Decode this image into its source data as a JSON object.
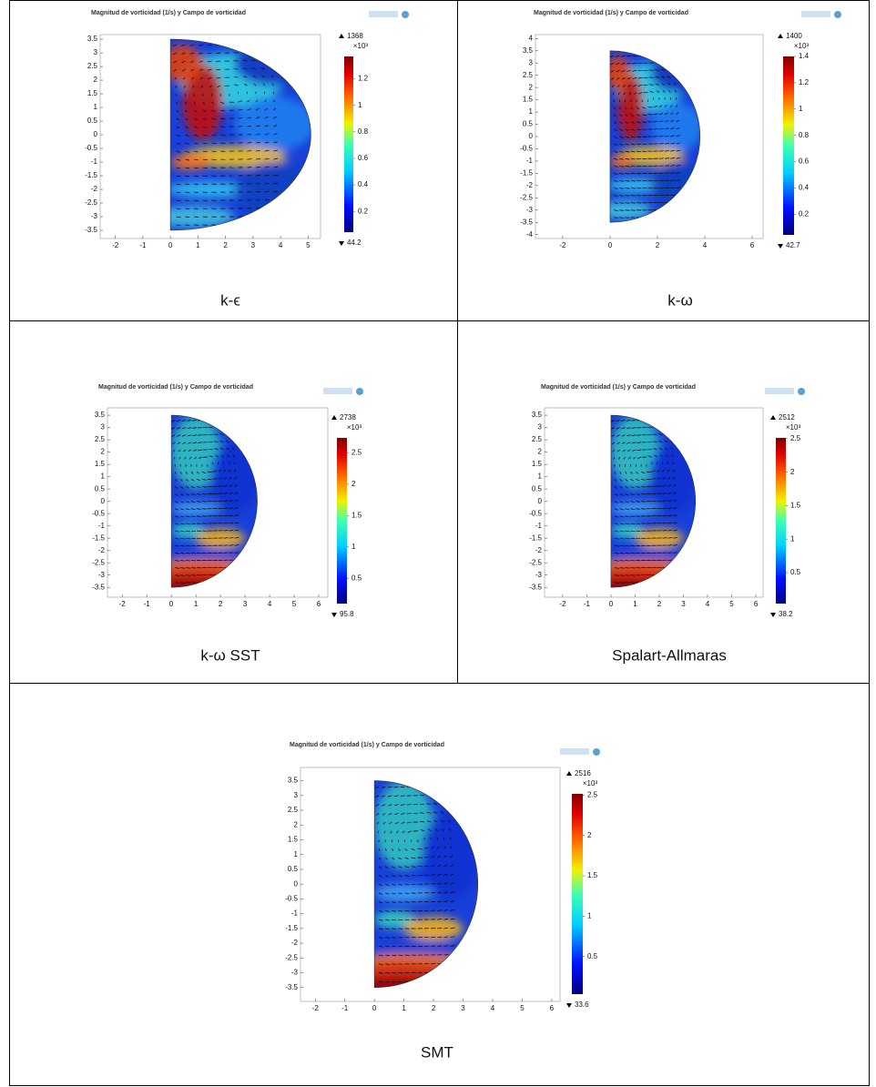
{
  "figure": {
    "panels": [
      {
        "title": "Magnitud de vorticidad (1/s) y Campo de vorticidad",
        "caption": "k-ϵ",
        "xlim": [
          -2.55,
          5.45
        ],
        "xticks": [
          -2,
          -1,
          0,
          1,
          2,
          3,
          4,
          5
        ],
        "ylim": [
          -3.8,
          3.67
        ],
        "yticks": [
          3.5,
          3,
          2.5,
          2,
          1.5,
          1,
          0.5,
          0,
          -0.5,
          -1,
          -1.5,
          -2,
          -2.5,
          -3,
          -3.5
        ],
        "colorbar": {
          "max": 1368,
          "min": 44.2,
          "multiplier": "×10³",
          "lim": [
            0.0442,
            1.368
          ],
          "ticks": [
            0.2,
            0.4,
            0.6,
            0.8,
            1,
            1.2
          ]
        }
      },
      {
        "title": "Magnitud de vorticidad (1/s) y Campo de vorticidad",
        "caption": "k-ω",
        "xlim": [
          -3.15,
          6.46
        ],
        "xticks": [
          -2,
          0,
          2,
          4,
          6
        ],
        "ylim": [
          -4.16,
          4.16
        ],
        "yticks": [
          4,
          3.5,
          3,
          2.5,
          2,
          1.5,
          1,
          0.5,
          0,
          -0.5,
          -1,
          -1.5,
          -2,
          -2.5,
          -3,
          -3.5,
          -4
        ],
        "colorbar": {
          "max": 1400,
          "min": 42.7,
          "multiplier": "×10³",
          "lim": [
            0.0427,
            1.4
          ],
          "ticks": [
            0.2,
            0.4,
            0.6,
            0.8,
            1,
            1.2,
            1.4
          ]
        }
      },
      {
        "title": "Magnitud de vorticidad (1/s) y Campo de vorticidad",
        "caption": "k-ω SST",
        "xlim": [
          -2.6,
          6.37
        ],
        "xticks": [
          -2,
          -1,
          0,
          1,
          2,
          3,
          4,
          5,
          6
        ],
        "ylim": [
          -3.9,
          3.8
        ],
        "yticks": [
          3.5,
          3,
          2.5,
          2,
          1.5,
          1,
          0.5,
          0,
          -0.5,
          -1,
          -1.5,
          -2,
          -2.5,
          -3,
          -3.5
        ],
        "colorbar": {
          "max": 2738,
          "min": 95.8,
          "multiplier": "×10³",
          "lim": [
            0.0958,
            2.738
          ],
          "ticks": [
            0.5,
            1,
            1.5,
            2,
            2.5
          ]
        }
      },
      {
        "title": "Magnitud de vorticidad (1/s) y Campo de vorticidad",
        "caption": "Spalart-Allmaras",
        "xlim": [
          -2.75,
          6.3
        ],
        "xticks": [
          -2,
          -1,
          0,
          1,
          2,
          3,
          4,
          5,
          6
        ],
        "ylim": [
          -3.9,
          3.8
        ],
        "yticks": [
          3.5,
          3,
          2.5,
          2,
          1.5,
          1,
          0.5,
          0,
          -0.5,
          -1,
          -1.5,
          -2,
          -2.5,
          -3,
          -3.5
        ],
        "colorbar": {
          "max": 2512,
          "min": 38.2,
          "multiplier": "×10³",
          "lim": [
            0.0382,
            2.512
          ],
          "ticks": [
            0.5,
            1,
            1.5,
            2,
            2.5
          ]
        }
      },
      {
        "title": "Magnitud de vorticidad (1/s) y Campo de vorticidad",
        "caption": "SMT",
        "xlim": [
          -2.5,
          6.28
        ],
        "xticks": [
          -2,
          -1,
          0,
          1,
          2,
          3,
          4,
          5,
          6
        ],
        "ylim": [
          -3.97,
          3.95
        ],
        "yticks": [
          3.5,
          3,
          2.5,
          2,
          1.5,
          1,
          0.5,
          0,
          -0.5,
          -1,
          -1.5,
          -2,
          -2.5,
          -3,
          -3.5
        ],
        "colorbar": {
          "max": 2516,
          "min": 33.6,
          "multiplier": "×10³",
          "lim": [
            0.0336,
            2.516
          ],
          "ticks": [
            0.5,
            1,
            1.5,
            2,
            2.5
          ]
        }
      }
    ]
  }
}
